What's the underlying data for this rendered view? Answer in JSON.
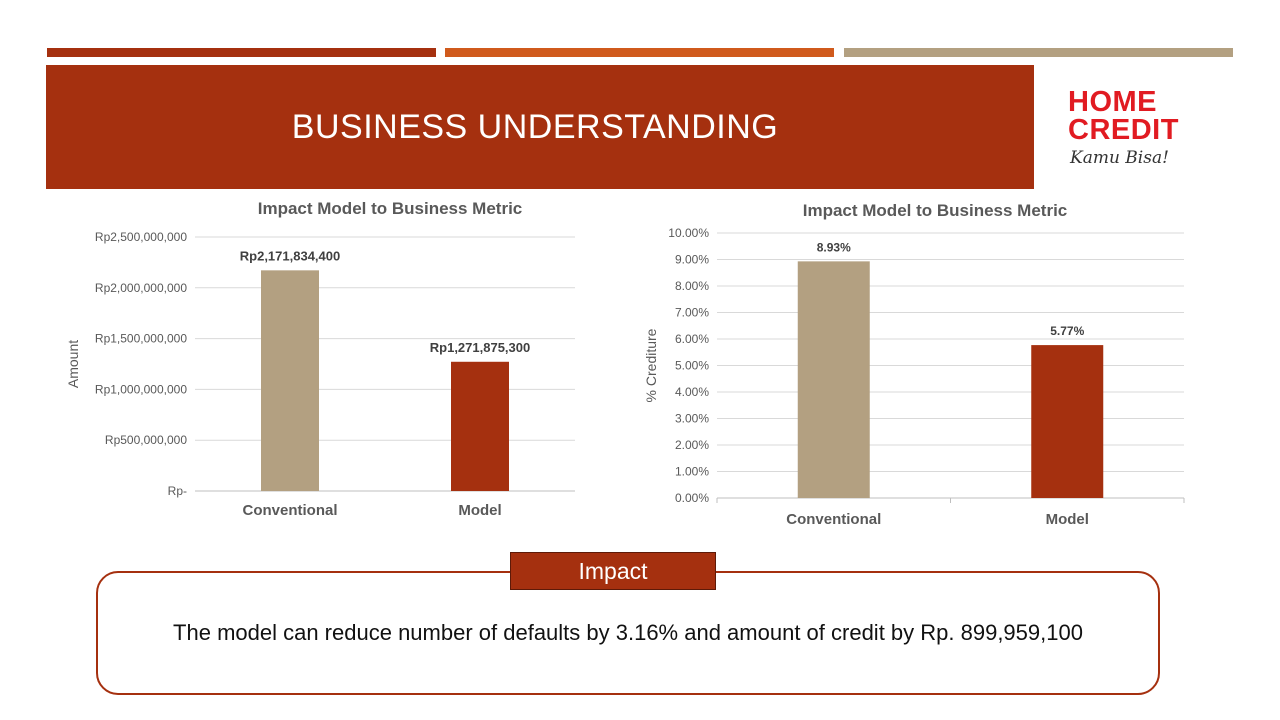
{
  "slide": {
    "title": "BUSINESS UNDERSTANDING",
    "colors": {
      "primary": "#a5300f",
      "accent": "#d05a1c",
      "tan": "#b3a081",
      "logo_red": "#e11b22"
    }
  },
  "logo": {
    "line1": "HOME",
    "line2": "CREDIT",
    "tagline": "Kamu Bisa!"
  },
  "impact": {
    "label": "Impact",
    "text": "The model can reduce number of defaults by 3.16% and amount of credit by Rp. 899,959,100"
  },
  "chart_data": [
    {
      "type": "bar",
      "title": "Impact Model to Business Metric",
      "ylabel": "Amount",
      "xlabel": "",
      "categories": [
        "Conventional",
        "Model"
      ],
      "values": [
        2171834400,
        1271875300
      ],
      "data_labels": [
        "Rp2,171,834,400",
        "Rp1,271,875,300"
      ],
      "bar_colors": [
        "#b3a081",
        "#a5300f"
      ],
      "ylim": [
        0,
        2500000000
      ],
      "yticks": [
        0,
        500000000,
        1000000000,
        1500000000,
        2000000000,
        2500000000
      ],
      "ytick_labels": [
        "Rp-",
        "Rp500,000,000",
        "Rp1,000,000,000",
        "Rp1,500,000,000",
        "Rp2,000,000,000",
        "Rp2,500,000,000"
      ],
      "grid": true
    },
    {
      "type": "bar",
      "title": "Impact Model to Business Metric",
      "ylabel": "% Crediture",
      "xlabel": "",
      "categories": [
        "Conventional",
        "Model"
      ],
      "values": [
        8.93,
        5.77
      ],
      "data_labels": [
        "8.93%",
        "5.77%"
      ],
      "bar_colors": [
        "#b3a081",
        "#a5300f"
      ],
      "ylim": [
        0,
        10
      ],
      "yticks": [
        0,
        1,
        2,
        3,
        4,
        5,
        6,
        7,
        8,
        9,
        10
      ],
      "ytick_labels": [
        "0.00%",
        "1.00%",
        "2.00%",
        "3.00%",
        "4.00%",
        "5.00%",
        "6.00%",
        "7.00%",
        "8.00%",
        "9.00%",
        "10.00%"
      ],
      "grid": true
    }
  ]
}
